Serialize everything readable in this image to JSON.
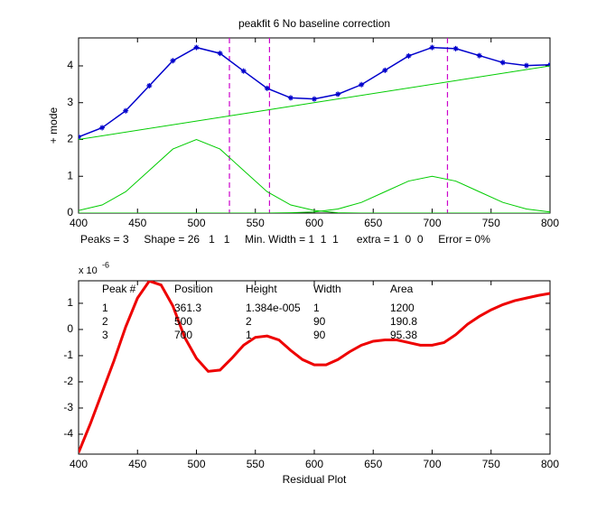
{
  "chart_data": [
    {
      "type": "line",
      "title": "peakfit 6    No baseline correction",
      "ylabel": "+ mode",
      "annotation": "Peaks = 3     Shape = 26   1   1     Min. Width = 1  1  1      extra = 1  0  0     Error = 0%",
      "xlim": [
        400,
        800
      ],
      "ylim": [
        0,
        4.76
      ],
      "xticks": [
        400,
        450,
        500,
        550,
        600,
        650,
        700,
        750,
        800
      ],
      "yticks": [
        0,
        1,
        2,
        3,
        4
      ],
      "series": [
        {
          "color": "#0000cc",
          "marker": "*",
          "x": [
            400,
            420,
            440,
            460,
            480,
            500,
            520,
            540,
            560,
            580,
            600,
            620,
            640,
            660,
            680,
            700,
            720,
            740,
            760,
            780,
            800
          ],
          "values": [
            2.07,
            2.32,
            2.78,
            3.46,
            4.14,
            4.5,
            4.34,
            3.86,
            3.39,
            3.13,
            3.1,
            3.23,
            3.49,
            3.88,
            4.27,
            4.5,
            4.47,
            4.28,
            4.09,
            4.01,
            4.03
          ]
        },
        {
          "color": "#00cc00",
          "x": [
            400,
            800
          ],
          "values": [
            2,
            4
          ]
        },
        {
          "color": "#00cc00",
          "x": [
            400,
            420,
            440,
            460,
            480,
            500,
            520,
            540,
            560,
            580,
            600,
            620,
            640,
            660,
            680,
            700,
            720,
            740,
            760,
            780,
            800
          ],
          "values": [
            0.07,
            0.22,
            0.58,
            1.16,
            1.74,
            2,
            1.74,
            1.16,
            0.58,
            0.22,
            0.07,
            0.01,
            0,
            0,
            0,
            0,
            0,
            0,
            0,
            0,
            0
          ]
        },
        {
          "color": "#00cc00",
          "x": [
            400,
            420,
            440,
            460,
            480,
            500,
            520,
            540,
            560,
            580,
            600,
            620,
            640,
            660,
            680,
            700,
            720,
            740,
            760,
            780,
            800
          ],
          "values": [
            0,
            0,
            0,
            0,
            0,
            0,
            0,
            0,
            0,
            0.01,
            0.03,
            0.11,
            0.29,
            0.58,
            0.87,
            1,
            0.87,
            0.58,
            0.29,
            0.11,
            0.03
          ]
        }
      ],
      "vlines": [
        528,
        562,
        713
      ],
      "vline_color": "#cc00cc"
    },
    {
      "type": "line",
      "xlabel": "Residual Plot",
      "y_scale_label": {
        "base": "x 10",
        "exponent": "-6"
      },
      "xlim": [
        400,
        800
      ],
      "ylim": [
        -4.76,
        1.86
      ],
      "xticks": [
        400,
        450,
        500,
        550,
        600,
        650,
        700,
        750,
        800
      ],
      "yticks": [
        -4,
        -3,
        -2,
        -1,
        0,
        1
      ],
      "series": [
        {
          "color": "#ee0000",
          "x": [
            400,
            410,
            420,
            430,
            440,
            450,
            460,
            470,
            480,
            490,
            500,
            510,
            520,
            530,
            540,
            550,
            560,
            570,
            580,
            590,
            600,
            610,
            620,
            630,
            640,
            650,
            660,
            670,
            680,
            690,
            700,
            710,
            720,
            730,
            740,
            750,
            760,
            770,
            780,
            790,
            800
          ],
          "values": [
            -4.7,
            -3.6,
            -2.4,
            -1.2,
            0.1,
            1.2,
            1.85,
            1.7,
            0.9,
            -0.3,
            -1.1,
            -1.6,
            -1.55,
            -1.1,
            -0.6,
            -0.3,
            -0.25,
            -0.4,
            -0.8,
            -1.15,
            -1.35,
            -1.35,
            -1.15,
            -0.85,
            -0.6,
            -0.45,
            -0.4,
            -0.4,
            -0.5,
            -0.6,
            -0.6,
            -0.5,
            -0.2,
            0.2,
            0.5,
            0.75,
            0.95,
            1.1,
            1.2,
            1.3,
            1.38
          ]
        }
      ],
      "table": {
        "header": [
          "Peak #",
          "Position",
          "Height",
          "Width",
          "Area"
        ],
        "rows": [
          [
            "1",
            "361.3",
            "1.384e-005",
            "1",
            "1200"
          ],
          [
            "2",
            "500",
            "2",
            "90",
            "190.8"
          ],
          [
            "3",
            "700",
            "1",
            "90",
            "95.38"
          ]
        ]
      }
    }
  ]
}
